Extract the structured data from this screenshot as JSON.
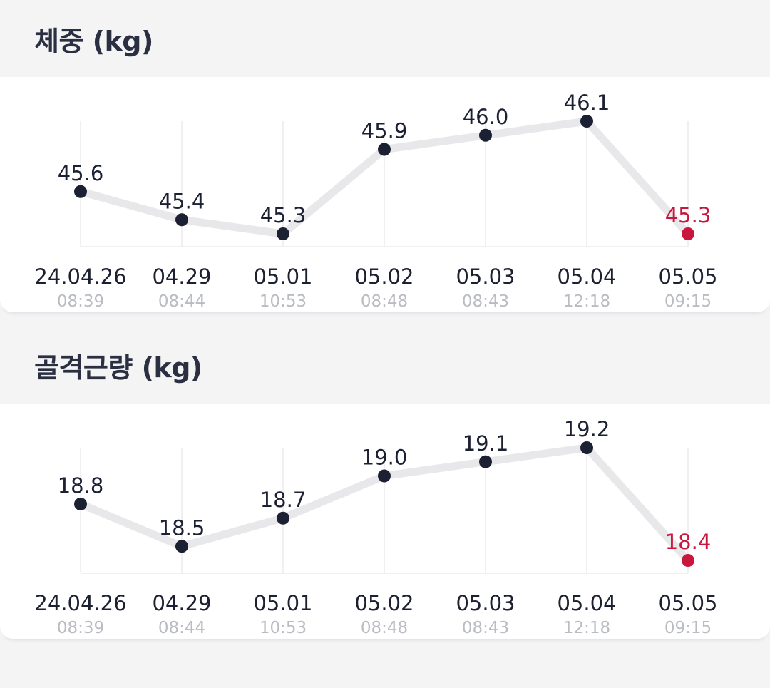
{
  "chart_data": [
    {
      "type": "line",
      "title": "체중 (kg)",
      "categories": [
        "24.04.26",
        "04.29",
        "05.01",
        "05.02",
        "05.03",
        "05.04",
        "05.05"
      ],
      "times": [
        "08:39",
        "08:44",
        "10:53",
        "08:48",
        "08:43",
        "12:18",
        "09:15"
      ],
      "values": [
        45.6,
        45.4,
        45.3,
        45.9,
        46.0,
        46.1,
        45.3
      ],
      "value_labels": [
        "45.6",
        "45.4",
        "45.3",
        "45.9",
        "46.0",
        "46.1",
        "45.3"
      ],
      "highlight_index": 6,
      "ylim": [
        45.3,
        46.1
      ],
      "grid": true
    },
    {
      "type": "line",
      "title": "골격근량 (kg)",
      "categories": [
        "24.04.26",
        "04.29",
        "05.01",
        "05.02",
        "05.03",
        "05.04",
        "05.05"
      ],
      "times": [
        "08:39",
        "08:44",
        "10:53",
        "08:48",
        "08:43",
        "12:18",
        "09:15"
      ],
      "values": [
        18.8,
        18.5,
        18.7,
        19.0,
        19.1,
        19.2,
        18.4
      ],
      "value_labels": [
        "18.8",
        "18.5",
        "18.7",
        "19.0",
        "19.1",
        "19.2",
        "18.4"
      ],
      "highlight_index": 6,
      "ylim": [
        18.4,
        19.2
      ],
      "grid": true
    }
  ],
  "colors": {
    "point": "#1c2033",
    "highlight": "#c8163d",
    "line": "#e8e8ea",
    "grid": "#ececef",
    "date_text": "#1c2030",
    "time_text": "#b9bcc2"
  }
}
